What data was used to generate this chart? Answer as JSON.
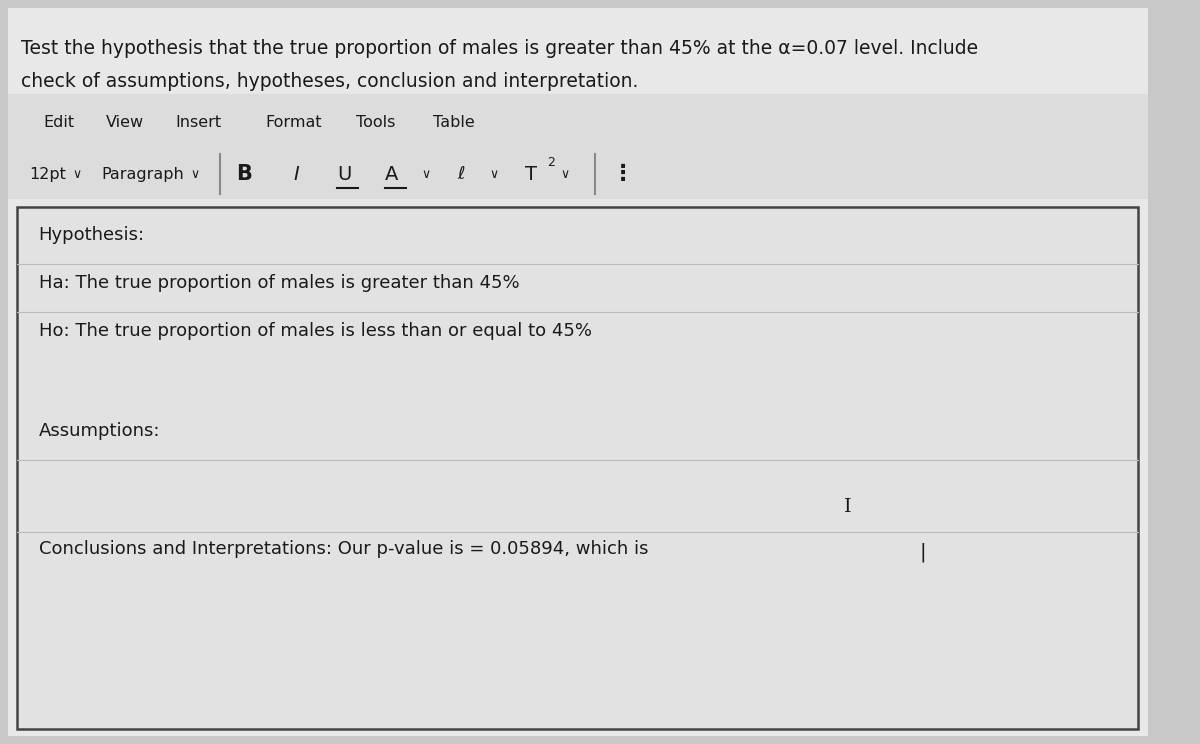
{
  "title_text_line1": "Test the hypothesis that the true proportion of males is greater than 45% at the α=0.07 level. Include",
  "title_text_line2": "check of assumptions, hypotheses, conclusion and interpretation.",
  "menu_items": [
    "Edit",
    "View",
    "Insert",
    "Format",
    "Tools",
    "Table"
  ],
  "hypothesis_label": "Hypothesis:",
  "ha_text": "Ha: The true proportion of males is greater than 45%",
  "ho_text": "Ho: The true proportion of males is less than or equal to 45%",
  "assumptions_label": "Assumptions:",
  "conclusions_text": "Conclusions and Interpretations: Our p-value is = 0.05894, which is",
  "outer_bg": "#c8c8c8",
  "page_bg": "#e8e8e8",
  "toolbar_bg": "#dcdcdc",
  "editor_bg": "#e2e2e2",
  "editor_border": "#444444",
  "text_color": "#1a1a1a",
  "font_size_title": 13.5,
  "font_size_body": 13.0,
  "font_size_menu": 11.5,
  "font_size_toolbar": 11.5
}
